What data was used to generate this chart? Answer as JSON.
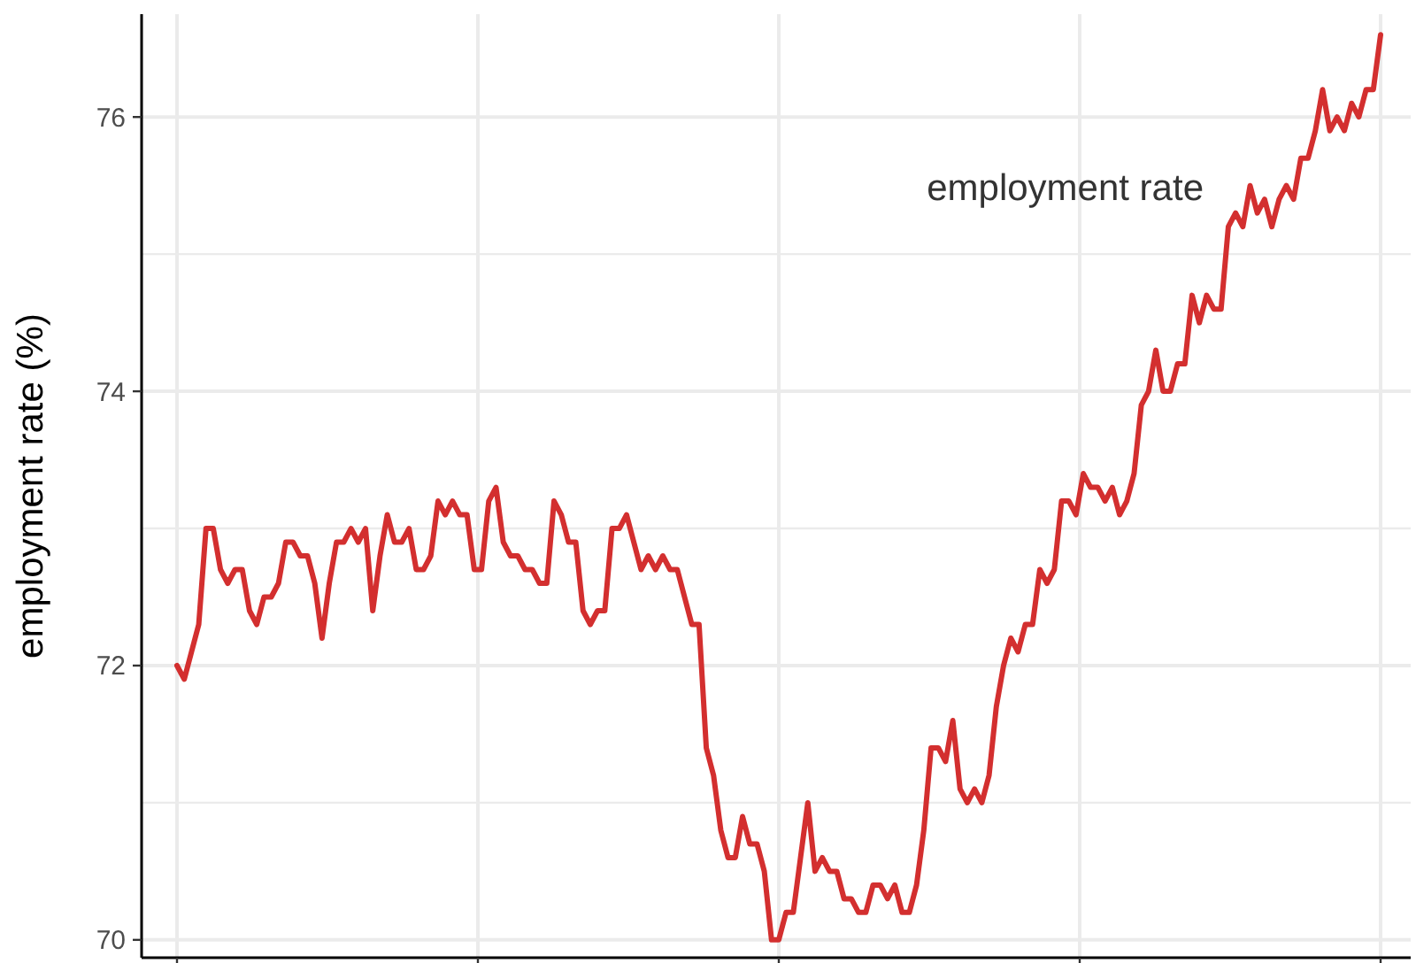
{
  "chart_data": {
    "type": "line",
    "ylabel": "employment rate (%)",
    "categories": [
      null,
      null,
      null,
      null,
      null,
      null,
      null,
      null,
      null,
      null,
      null,
      null,
      null,
      null,
      null,
      null,
      null,
      null,
      null,
      null,
      null,
      null,
      null,
      null,
      null,
      null,
      null,
      null,
      null,
      null,
      null,
      null,
      null,
      null,
      null,
      null,
      null,
      null,
      null,
      null,
      null,
      null,
      null,
      null,
      null,
      null,
      null,
      null,
      null,
      null,
      null,
      null,
      null,
      null,
      null,
      null,
      null,
      null,
      null,
      null,
      null,
      null,
      null,
      null,
      null,
      null,
      null,
      null,
      null,
      null,
      null,
      null,
      null,
      null,
      null,
      null,
      null,
      null,
      null,
      null,
      null,
      null,
      null,
      null,
      null,
      null,
      null,
      null,
      null,
      null,
      null,
      null,
      null,
      null,
      null,
      null,
      null,
      null,
      null,
      null,
      null,
      null,
      null,
      null,
      null,
      null,
      null,
      null,
      null,
      null,
      null,
      null,
      null,
      null,
      null,
      null,
      null,
      null,
      null,
      null,
      null,
      null,
      null,
      null,
      null,
      null,
      null,
      null,
      null,
      null,
      null,
      null,
      null,
      null,
      null,
      null,
      null,
      null,
      null,
      null,
      null,
      null,
      null,
      null,
      null,
      null,
      null,
      null,
      null,
      null,
      null,
      null,
      null,
      null,
      null,
      null,
      null,
      null,
      null,
      null,
      null,
      null,
      null,
      null,
      null,
      null,
      null
    ],
    "ylim": [
      69.87,
      76.75
    ],
    "yticks": [
      70,
      {
        "value": 71,
        "label": null
      },
      72,
      {
        "value": 73,
        "label": null
      },
      74,
      {
        "value": 75,
        "label": null
      },
      76
    ],
    "grid": true,
    "line_style": "solid",
    "marker": "none",
    "series": [
      {
        "name": "employment rate",
        "color": "#d32f2f",
        "values": [
          72.0,
          71.9,
          72.1,
          72.3,
          73.0,
          73.0,
          72.7,
          72.6,
          72.7,
          72.7,
          72.4,
          72.3,
          72.5,
          72.5,
          72.6,
          72.9,
          72.9,
          72.8,
          72.8,
          72.6,
          72.2,
          72.6,
          72.9,
          72.9,
          73.0,
          72.9,
          73.0,
          72.4,
          72.8,
          73.1,
          72.9,
          72.9,
          73.0,
          72.7,
          72.7,
          72.8,
          73.2,
          73.1,
          73.2,
          73.1,
          73.1,
          72.7,
          72.7,
          73.2,
          73.3,
          72.9,
          72.8,
          72.8,
          72.7,
          72.7,
          72.6,
          72.6,
          73.2,
          73.1,
          72.9,
          72.9,
          72.4,
          72.3,
          72.4,
          72.4,
          73.0,
          73.0,
          73.1,
          72.9,
          72.7,
          72.8,
          72.7,
          72.8,
          72.7,
          72.7,
          72.5,
          72.3,
          72.3,
          71.4,
          71.2,
          70.8,
          70.6,
          70.6,
          70.9,
          70.7,
          70.7,
          70.5,
          70.0,
          70.0,
          70.2,
          70.2,
          70.6,
          71.0,
          70.5,
          70.6,
          70.5,
          70.5,
          70.3,
          70.3,
          70.2,
          70.2,
          70.4,
          70.4,
          70.3,
          70.4,
          70.2,
          70.2,
          70.4,
          70.8,
          71.4,
          71.4,
          71.3,
          71.6,
          71.1,
          71.0,
          71.1,
          71.0,
          71.2,
          71.7,
          72.0,
          72.2,
          72.1,
          72.3,
          72.3,
          72.7,
          72.6,
          72.7,
          73.2,
          73.2,
          73.1,
          73.4,
          73.3,
          73.3,
          73.2,
          73.3,
          73.1,
          73.2,
          73.4,
          73.9,
          74.0,
          74.3,
          74.0,
          74.0,
          74.2,
          74.2,
          74.7,
          74.5,
          74.7,
          74.6,
          74.6,
          75.2,
          75.3,
          75.2,
          75.5,
          75.3,
          75.4,
          75.2,
          75.4,
          75.5,
          75.4,
          75.7,
          75.7,
          75.9,
          76.2,
          75.9,
          76.0,
          75.9,
          76.1,
          76.0,
          76.2,
          76.2,
          76.6
        ]
      }
    ]
  }
}
